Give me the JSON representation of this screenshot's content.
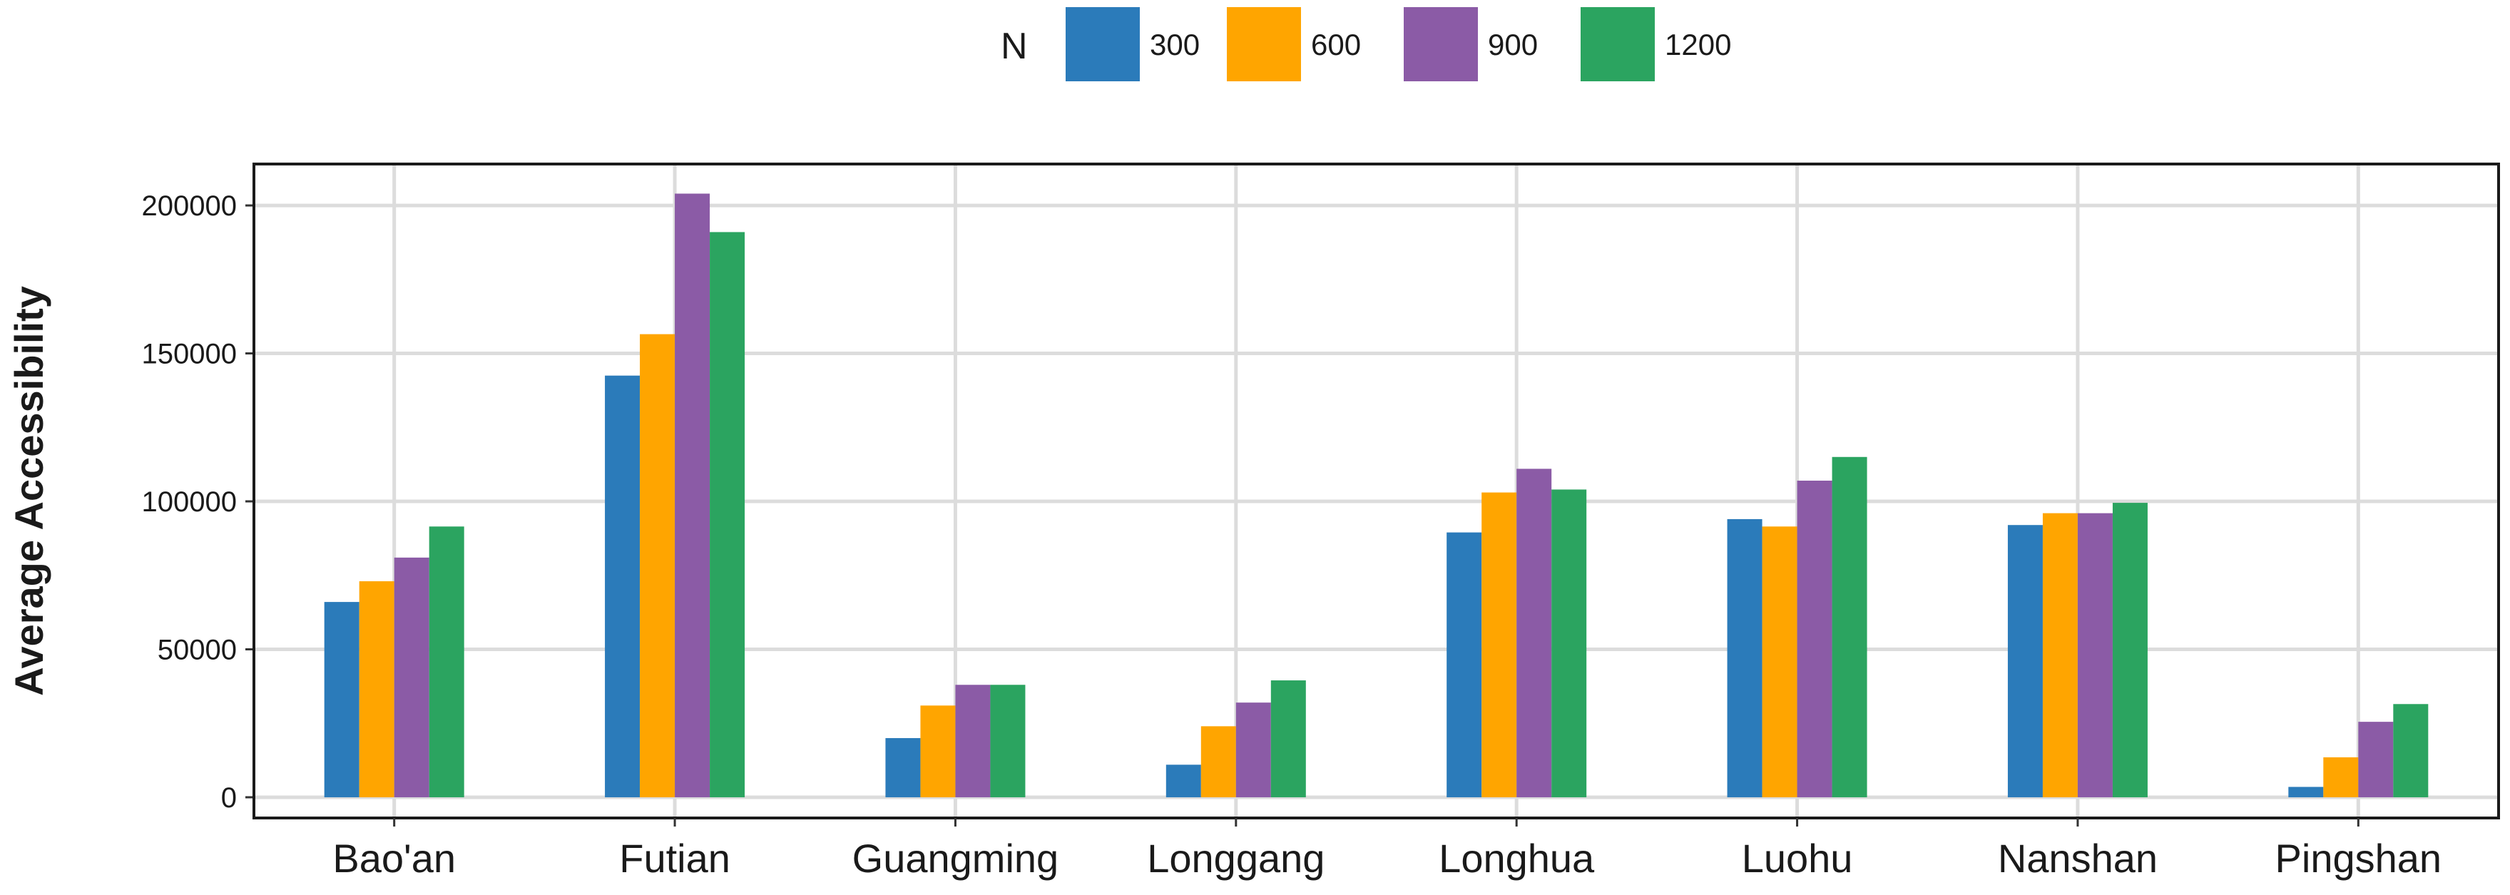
{
  "chart_data": {
    "type": "bar",
    "title": "",
    "xlabel": "",
    "ylabel": "Average Accessibility",
    "legend_title": "N",
    "legend_position": "top",
    "grid": true,
    "ylim": [
      -7000,
      214000
    ],
    "yticks": [
      0,
      50000,
      100000,
      150000,
      200000
    ],
    "ytick_labels": [
      "0",
      "50000",
      "100000",
      "150000",
      "200000"
    ],
    "categories": [
      "Bao'an",
      "Futian",
      "Guangming",
      "Longgang",
      "Longhua",
      "Luohu",
      "Nanshan",
      "Pingshan"
    ],
    "series": [
      {
        "name": "300",
        "color": "#2b7bba",
        "values": [
          66000,
          142500,
          20000,
          11000,
          89500,
          94000,
          92000,
          3500
        ]
      },
      {
        "name": "600",
        "color": "#ffa500",
        "values": [
          73000,
          156500,
          31000,
          24000,
          103000,
          91500,
          96000,
          13500
        ]
      },
      {
        "name": "900",
        "color": "#8b5ba6",
        "values": [
          81000,
          204000,
          38000,
          32000,
          111000,
          107000,
          96000,
          25500
        ]
      },
      {
        "name": "1200",
        "color": "#2ba460",
        "values": [
          91500,
          191000,
          38000,
          39500,
          104000,
          115000,
          99500,
          31500
        ]
      }
    ]
  }
}
